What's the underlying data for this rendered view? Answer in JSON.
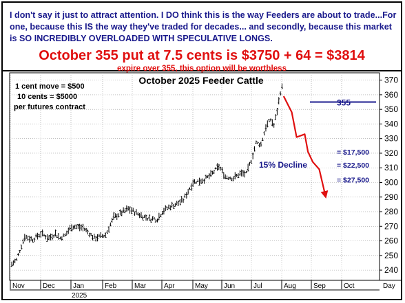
{
  "colors": {
    "note": "#1a1a8c",
    "offer": "#e01010",
    "price": "#000000",
    "projection": "#e01010",
    "strike": "#1a1a8c",
    "annotation": "#1a1a8c"
  },
  "header": {
    "note": "I don't say it just to attract attention. I DO think this is the way Feeders are about to trade...For one, because this IS the way they've traded for decades... and secondly, because this market is SO INCREDIBLY OVERLOADED WITH SPECULATIVE LONGS.",
    "offer": "October 355 put at 7.5 cents is $3750 + 64 = $3814",
    "expiry": "expire over 355, this option will be worthless"
  },
  "chart_data": {
    "type": "bar",
    "title": "October 2025 Feeder Cattle",
    "notes": [
      "1 cent move = $500",
      "10 cents = $5000",
      "per futures contract"
    ],
    "x_ticks": [
      "Nov",
      "Dec",
      "Jan",
      "Feb",
      "Mar",
      "Apr",
      "May",
      "Jun",
      "Jul",
      "Aug",
      "Sep",
      "Oct",
      "Day"
    ],
    "year_label": "2025",
    "ylim": [
      233,
      375
    ],
    "y_ticks": [
      240,
      250,
      260,
      270,
      280,
      290,
      300,
      310,
      320,
      330,
      340,
      350,
      360,
      370
    ],
    "price_path": [
      [
        0,
        244
      ],
      [
        3,
        247
      ],
      [
        8,
        263
      ],
      [
        13,
        261
      ],
      [
        18,
        265
      ],
      [
        23,
        262
      ],
      [
        27,
        265
      ],
      [
        30,
        262
      ],
      [
        33,
        264
      ],
      [
        37,
        270
      ],
      [
        44,
        269
      ],
      [
        51,
        262
      ],
      [
        58,
        264
      ],
      [
        63,
        276
      ],
      [
        72,
        282
      ],
      [
        79,
        278
      ],
      [
        85,
        275
      ],
      [
        90,
        275
      ],
      [
        93,
        280
      ],
      [
        97,
        283
      ],
      [
        103,
        286
      ],
      [
        106,
        288
      ],
      [
        109,
        294
      ],
      [
        112,
        300
      ],
      [
        119,
        302
      ],
      [
        123,
        305
      ],
      [
        128,
        311
      ],
      [
        132,
        304
      ],
      [
        137,
        303
      ],
      [
        141,
        306
      ],
      [
        145,
        306
      ],
      [
        148,
        315
      ],
      [
        151,
        327
      ],
      [
        154,
        326
      ],
      [
        157,
        338
      ],
      [
        160,
        343
      ],
      [
        162,
        339
      ],
      [
        164,
        349
      ],
      [
        166,
        362
      ],
      [
        167,
        365
      ]
    ],
    "projection_path": [
      [
        168,
        359
      ],
      [
        173,
        348
      ],
      [
        176,
        331
      ],
      [
        181,
        333
      ],
      [
        183,
        321
      ],
      [
        186,
        314
      ],
      [
        190,
        309
      ],
      [
        194,
        290
      ]
    ],
    "strike": {
      "value": 355,
      "label": "355"
    },
    "decline_label": "15% Decline",
    "loss_labels": [
      {
        "text": "= $17,500",
        "y": 321
      },
      {
        "text": "= $22,500",
        "y": 312
      },
      {
        "text": "= $27,500",
        "y": 302
      }
    ]
  }
}
